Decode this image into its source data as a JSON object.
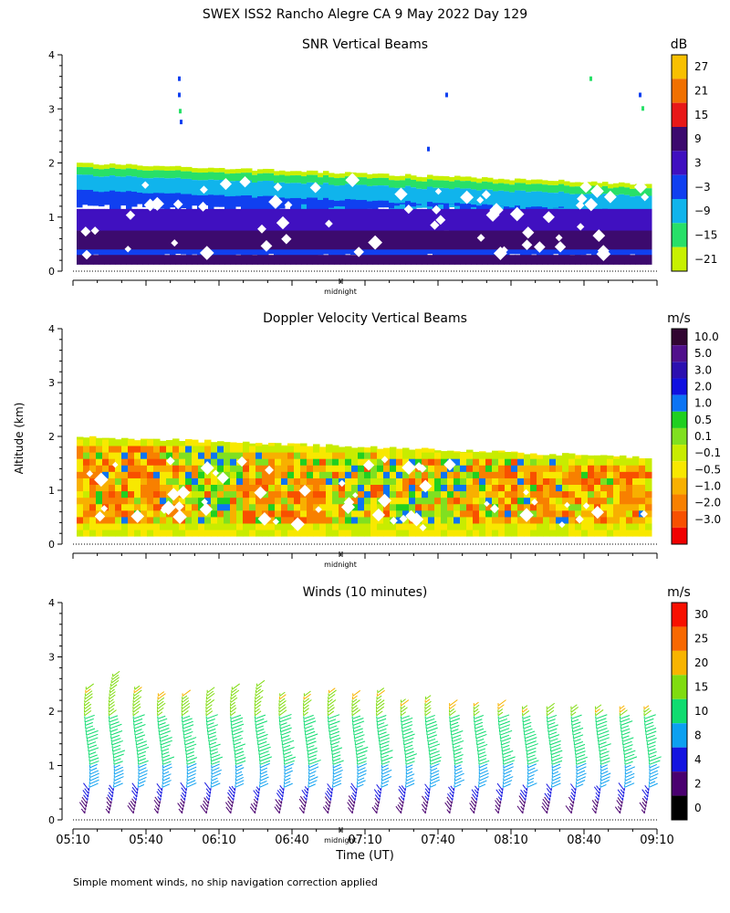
{
  "page_title": "SWEX ISS2 Rancho Alegre CA   9 May 2022 Day 129",
  "footnote": "Simple moment winds, no ship navigation correction applied",
  "y_axis_label": "Altitude (km)",
  "x_axis_label": "Time (UT)",
  "midnight_label": "midnight",
  "colors": {
    "snr": [
      "#c8f000",
      "#28e068",
      "#10b4ec",
      "#1040f0",
      "#4010c0",
      "#3c0a6e",
      "#e81818",
      "#f07000",
      "#f8c000"
    ],
    "doppler": [
      "#f00000",
      "#f85000",
      "#f88000",
      "#f8b000",
      "#f8e800",
      "#c8ec00",
      "#80e020",
      "#20d020",
      "#0c74f4",
      "#1010e0",
      "#2c10b0",
      "#50108c",
      "#320632"
    ],
    "winds": [
      "#000000",
      "#4a0070",
      "#1414e0",
      "#0ca0f0",
      "#10dc70",
      "#80dc10",
      "#f8b400",
      "#f86800",
      "#f81000"
    ]
  },
  "chart_data": [
    {
      "type": "heatmap",
      "name": "snr",
      "title": "SNR Vertical Beams",
      "units": "dB",
      "ylabel": "Altitude (km)",
      "ylim": [
        0,
        4
      ],
      "yticks": [
        "0",
        "1",
        "2",
        "3",
        "4"
      ],
      "x_range_utc": [
        "05:10",
        "09:10"
      ],
      "colorbar_ticks": [
        "27",
        "21",
        "15",
        "9",
        "3",
        "−3",
        "−9",
        "−15",
        "−21"
      ],
      "data_top_km": {
        "start": 2.0,
        "end": 1.6
      },
      "layers_bottom_up": [
        "purple",
        "navy",
        "purple",
        "blue",
        "cyan",
        "green",
        "yellow-green"
      ]
    },
    {
      "type": "heatmap",
      "name": "doppler",
      "title": "Doppler Velocity Vertical Beams",
      "units": "m/s",
      "ylabel": "Altitude (km)",
      "ylim": [
        0,
        4
      ],
      "yticks": [
        "0",
        "1",
        "2",
        "3",
        "4"
      ],
      "x_range_utc": [
        "05:10",
        "09:10"
      ],
      "colorbar_ticks": [
        "10.0",
        "5.0",
        "3.0",
        "2.0",
        "1.0",
        "0.5",
        "0.1",
        "−0.1",
        "−0.5",
        "−1.0",
        "−2.0",
        "−3.0"
      ],
      "data_top_km": {
        "start": 2.0,
        "end": 1.6
      }
    },
    {
      "type": "scatter",
      "name": "winds",
      "title": "Winds (10 minutes)",
      "units": "m/s",
      "ylabel": "Altitude (km)",
      "xlabel": "Time (UT)",
      "ylim": [
        0,
        4
      ],
      "yticks": [
        "0",
        "1",
        "2",
        "3",
        "4"
      ],
      "x_ticks": [
        "05:10",
        "05:40",
        "06:10",
        "06:40",
        "07:10",
        "07:40",
        "08:10",
        "08:40",
        "09:10"
      ],
      "colorbar_ticks": [
        "30",
        "25",
        "20",
        "15",
        "10",
        "8",
        "4",
        "2",
        "0"
      ],
      "profile_times_utc": [
        "05:15",
        "05:25",
        "05:35",
        "05:45",
        "05:55",
        "06:05",
        "06:15",
        "06:25",
        "06:35",
        "06:45",
        "06:55",
        "07:05",
        "07:15",
        "07:25",
        "07:35",
        "07:45",
        "07:55",
        "08:05",
        "08:15",
        "08:25",
        "08:35",
        "08:45",
        "08:55",
        "09:05"
      ],
      "profile_tops_km": [
        2.45,
        2.65,
        2.45,
        2.3,
        2.3,
        2.35,
        2.45,
        2.5,
        2.3,
        2.3,
        2.35,
        2.3,
        2.4,
        2.2,
        2.25,
        2.15,
        2.15,
        2.15,
        2.1,
        2.1,
        2.05,
        2.05,
        2.05,
        2.05
      ]
    }
  ]
}
